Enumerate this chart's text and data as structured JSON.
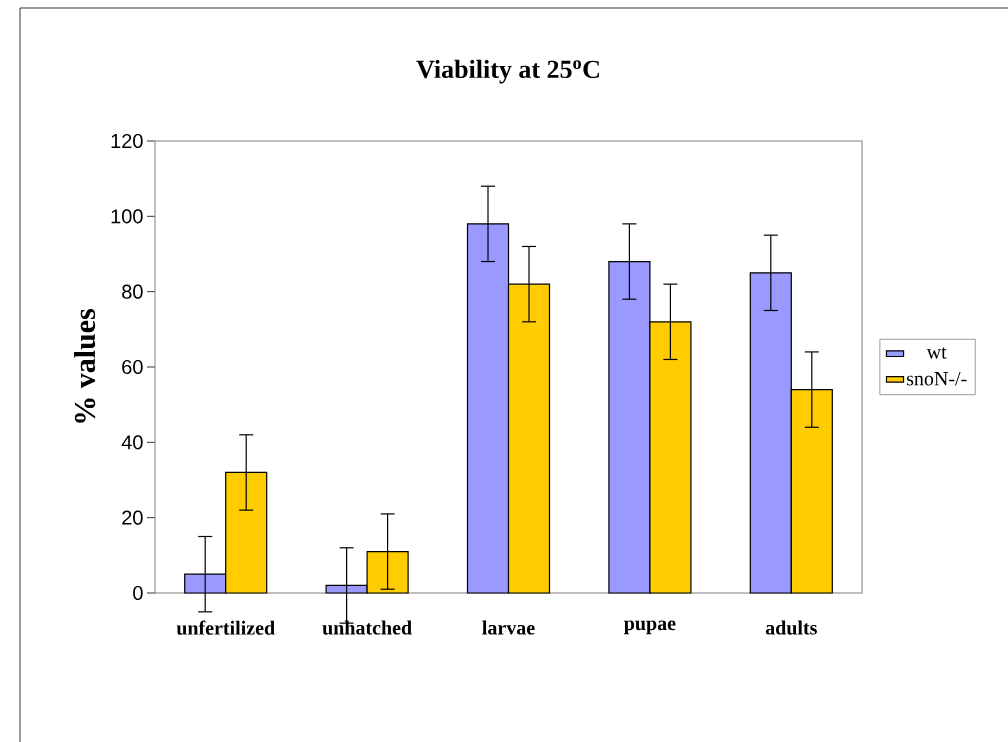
{
  "chart_data": {
    "type": "bar",
    "title": "Viability at 25$^{o}$C",
    "ylabel": "% values",
    "categories": [
      "unfertilized",
      "unhatched",
      "larvae",
      "pupae",
      "adults"
    ],
    "series": [
      {
        "name": "wt",
        "color": "#9999ff",
        "values": [
          5,
          2,
          98,
          88,
          85
        ],
        "errors": [
          10,
          10,
          10,
          10,
          10
        ]
      },
      {
        "name": "snoN-/-",
        "color": "#ffcc00",
        "values": [
          32,
          11,
          82,
          72,
          54
        ],
        "errors": [
          10,
          10,
          10,
          10,
          10
        ]
      }
    ],
    "ylim": [
      0,
      120
    ],
    "yticks": [
      0,
      20,
      40,
      60,
      80,
      100,
      120
    ],
    "legend": "right"
  }
}
